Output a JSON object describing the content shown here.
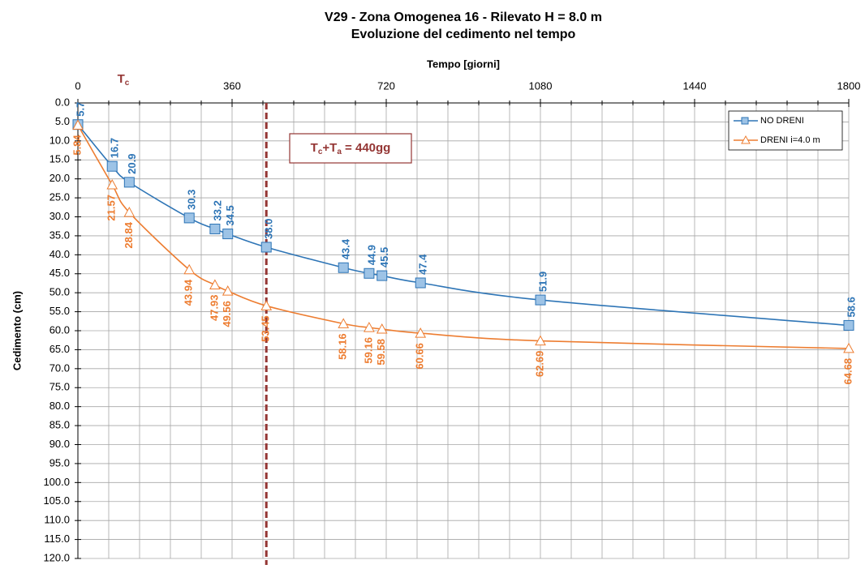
{
  "chart_data": {
    "type": "line",
    "title": "V29 - Zona Omogenea 16 - Rilevato H = 8.0 m",
    "subtitle": "Evoluzione del cedimento nel tempo",
    "x_label": "Tempo [giorni]",
    "y_label": "Cedimento (cm)",
    "x": [
      0,
      80,
      120,
      260,
      320,
      350,
      440,
      620,
      680,
      710,
      800,
      1080,
      1800
    ],
    "series": [
      {
        "name": "NO DRENI",
        "color": "#2e75b6",
        "marker": "square",
        "values": [
          5.7,
          16.7,
          20.9,
          30.3,
          33.2,
          34.5,
          38.0,
          43.4,
          44.9,
          45.5,
          47.4,
          51.9,
          58.6
        ],
        "value_labels": [
          "5.7",
          "16.7",
          "20.9",
          "30.3",
          "33.2",
          "34.5",
          "38.0",
          "43.4",
          "44.9",
          "45.5",
          "47.4",
          "51.9",
          "58.6"
        ]
      },
      {
        "name": "DRENI i=4.0 m",
        "color": "#ed7d31",
        "marker": "triangle",
        "values": [
          5.84,
          21.57,
          28.84,
          43.94,
          47.93,
          49.56,
          53.45,
          58.16,
          59.16,
          59.58,
          60.66,
          62.69,
          64.68
        ]
      }
    ],
    "xlim": [
      0,
      1800
    ],
    "xticks": [
      0,
      360,
      720,
      1080,
      1440,
      1800
    ],
    "x_minor_ticks": [
      72,
      144,
      216,
      288,
      432,
      504,
      576,
      648,
      792,
      864,
      936,
      1008,
      1152,
      1224,
      1296,
      1368,
      1512,
      1584,
      1656,
      1728
    ],
    "ylim": [
      0,
      120
    ],
    "y_inverted": true,
    "yticks": [
      {
        "value": 0,
        "label": "0.0"
      },
      {
        "value": 5,
        "label": "5.0"
      },
      {
        "value": 10,
        "label": "10.0"
      },
      {
        "value": 15,
        "label": "15.0"
      },
      {
        "value": 20,
        "label": "20.0"
      },
      {
        "value": 25,
        "label": "25.0"
      },
      {
        "value": 30,
        "label": "30.0"
      },
      {
        "value": 35,
        "label": "35.0"
      },
      {
        "value": 40,
        "label": "40.0"
      },
      {
        "value": 45,
        "label": "45.0"
      },
      {
        "value": 50,
        "label": "50.0"
      },
      {
        "value": 55,
        "label": "55.0"
      },
      {
        "value": 60,
        "label": "60.0"
      },
      {
        "value": 65,
        "label": "65.0"
      },
      {
        "value": 70,
        "label": "70.0"
      },
      {
        "value": 75,
        "label": "75.0"
      },
      {
        "value": 80,
        "label": "80.0"
      },
      {
        "value": 85,
        "label": "85.0"
      },
      {
        "value": 90,
        "label": "90.0"
      },
      {
        "value": 95,
        "label": "95.0"
      },
      {
        "value": 100,
        "label": "100.0"
      },
      {
        "value": 105,
        "label": "105.0"
      },
      {
        "value": 110,
        "label": "110.0"
      },
      {
        "value": 115,
        "label": "115.0"
      },
      {
        "value": 120,
        "label": "120.0"
      }
    ],
    "grid": true,
    "legend": "upper right",
    "tc_label": [
      "T",
      "c"
    ],
    "vline": {
      "x": 440,
      "color": "#943634",
      "label": [
        "T",
        "c",
        "+T",
        "a",
        " = 440gg"
      ]
    }
  }
}
